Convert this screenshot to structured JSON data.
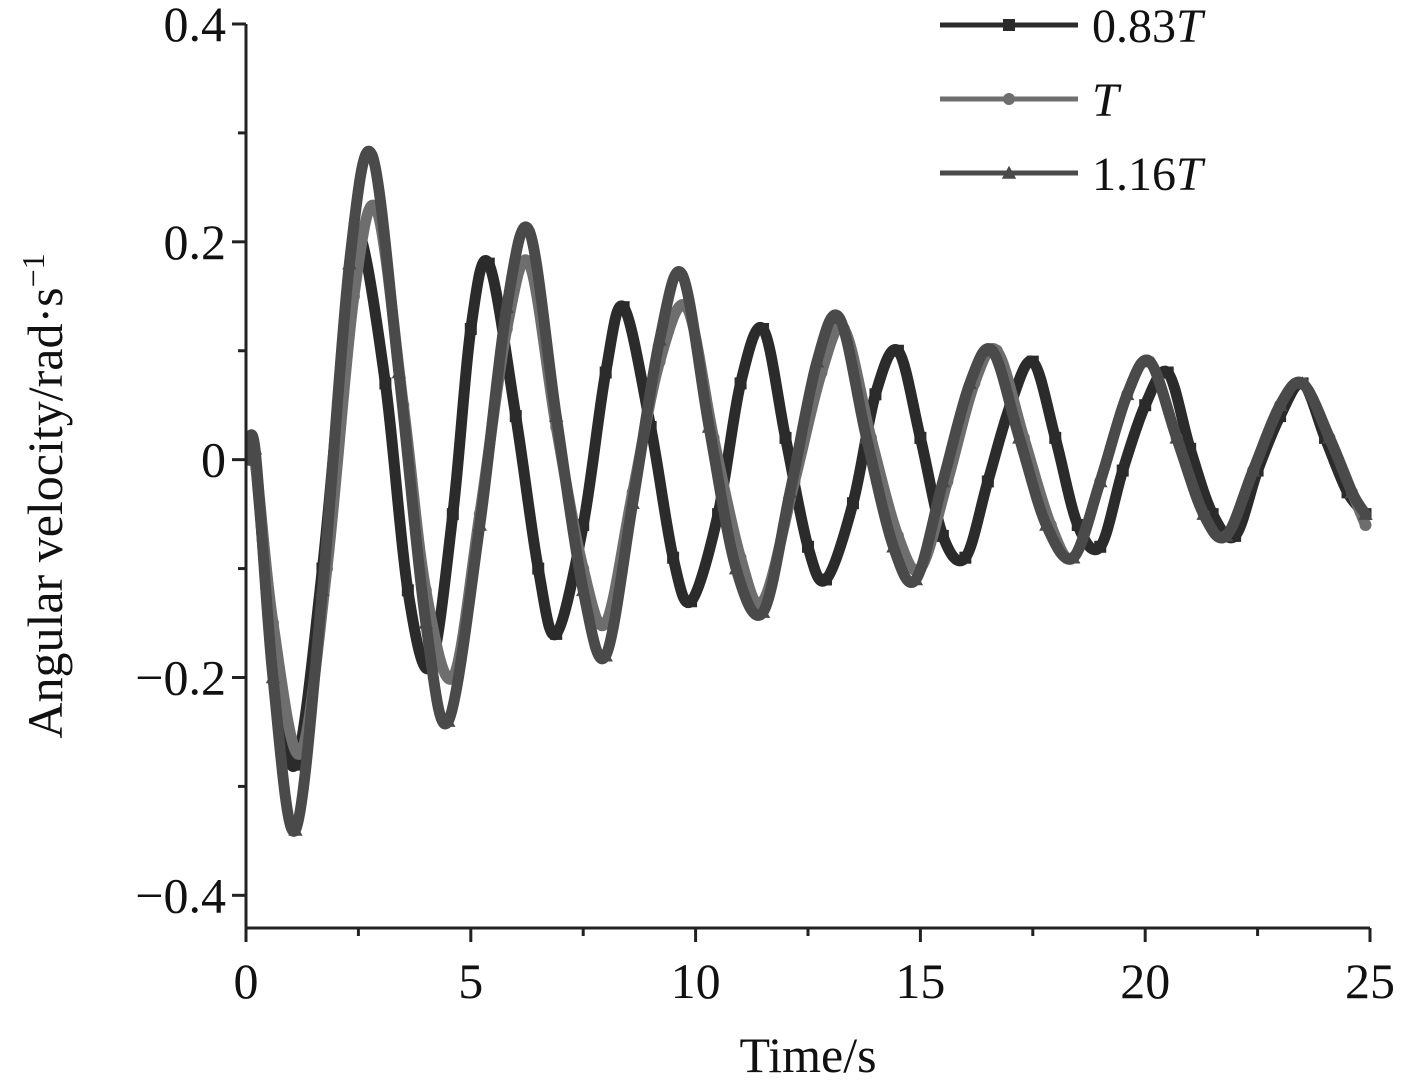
{
  "chart_data": {
    "type": "line",
    "title": "",
    "xlabel": "Time/s",
    "ylabel": "Angular velocity/rad·s",
    "ylabel_superscript": "−1",
    "xlim": [
      0,
      25
    ],
    "ylim": [
      -0.43,
      0.4
    ],
    "x_ticks": [
      0,
      5,
      10,
      15,
      20,
      25
    ],
    "x_tick_labels": [
      "0",
      "5",
      "10",
      "15",
      "20",
      "25"
    ],
    "y_ticks": [
      -0.4,
      -0.2,
      0,
      0.2,
      0.4
    ],
    "y_tick_labels": [
      "−0.4",
      "−0.2",
      "0",
      "0.2",
      "0.4"
    ],
    "grid": false,
    "legend_position": "top-right",
    "series": [
      {
        "name": "0.83T",
        "legend_prefix": "0.83",
        "legend_italic": "T",
        "marker": "square",
        "color": "#2b2b2b",
        "points": [
          [
            0,
            0
          ],
          [
            0.2,
            0
          ],
          [
            0.6,
            -0.18
          ],
          [
            1.1,
            -0.28
          ],
          [
            1.7,
            -0.1
          ],
          [
            2.2,
            0.12
          ],
          [
            2.5,
            0.21
          ],
          [
            3.1,
            0.07
          ],
          [
            3.6,
            -0.12
          ],
          [
            4.1,
            -0.19
          ],
          [
            4.6,
            -0.05
          ],
          [
            5.0,
            0.12
          ],
          [
            5.4,
            0.18
          ],
          [
            6.0,
            0.04
          ],
          [
            6.5,
            -0.1
          ],
          [
            6.9,
            -0.16
          ],
          [
            7.5,
            -0.06
          ],
          [
            8.0,
            0.08
          ],
          [
            8.4,
            0.14
          ],
          [
            9.0,
            0.03
          ],
          [
            9.5,
            -0.09
          ],
          [
            9.9,
            -0.13
          ],
          [
            10.5,
            -0.05
          ],
          [
            11.0,
            0.07
          ],
          [
            11.5,
            0.12
          ],
          [
            12.0,
            0.02
          ],
          [
            12.5,
            -0.08
          ],
          [
            12.9,
            -0.11
          ],
          [
            13.5,
            -0.04
          ],
          [
            14.0,
            0.06
          ],
          [
            14.5,
            0.1
          ],
          [
            15.0,
            0.02
          ],
          [
            15.5,
            -0.07
          ],
          [
            16.0,
            -0.09
          ],
          [
            16.5,
            -0.02
          ],
          [
            17.0,
            0.05
          ],
          [
            17.5,
            0.09
          ],
          [
            18.0,
            0.02
          ],
          [
            18.5,
            -0.06
          ],
          [
            19.0,
            -0.08
          ],
          [
            19.5,
            -0.01
          ],
          [
            20.0,
            0.05
          ],
          [
            20.5,
            0.08
          ],
          [
            21.0,
            0.01
          ],
          [
            21.5,
            -0.05
          ],
          [
            22.0,
            -0.07
          ],
          [
            22.5,
            -0.01
          ],
          [
            23.0,
            0.04
          ],
          [
            23.5,
            0.07
          ],
          [
            24.0,
            0.02
          ],
          [
            24.5,
            -0.03
          ],
          [
            24.9,
            -0.05
          ]
        ]
      },
      {
        "name": "T",
        "legend_prefix": "",
        "legend_italic": "T",
        "marker": "circle",
        "color": "#6e6e6e",
        "points": [
          [
            0,
            0
          ],
          [
            0.2,
            0
          ],
          [
            0.6,
            -0.15
          ],
          [
            1.2,
            -0.27
          ],
          [
            1.8,
            -0.1
          ],
          [
            2.4,
            0.15
          ],
          [
            2.9,
            0.23
          ],
          [
            3.5,
            0.05
          ],
          [
            4.0,
            -0.12
          ],
          [
            4.6,
            -0.2
          ],
          [
            5.2,
            -0.05
          ],
          [
            5.8,
            0.12
          ],
          [
            6.3,
            0.18
          ],
          [
            6.9,
            0.03
          ],
          [
            7.5,
            -0.1
          ],
          [
            8.0,
            -0.15
          ],
          [
            8.6,
            -0.03
          ],
          [
            9.2,
            0.09
          ],
          [
            9.8,
            0.14
          ],
          [
            10.4,
            0.02
          ],
          [
            11.0,
            -0.09
          ],
          [
            11.5,
            -0.13
          ],
          [
            12.2,
            -0.02
          ],
          [
            12.8,
            0.08
          ],
          [
            13.3,
            0.12
          ],
          [
            13.9,
            0.02
          ],
          [
            14.5,
            -0.07
          ],
          [
            15.0,
            -0.1
          ],
          [
            15.6,
            -0.02
          ],
          [
            16.2,
            0.07
          ],
          [
            16.7,
            0.1
          ],
          [
            17.3,
            0.02
          ],
          [
            17.9,
            -0.06
          ],
          [
            18.4,
            -0.09
          ],
          [
            19.0,
            -0.02
          ],
          [
            19.6,
            0.06
          ],
          [
            20.1,
            0.09
          ],
          [
            20.7,
            0.02
          ],
          [
            21.3,
            -0.05
          ],
          [
            21.8,
            -0.07
          ],
          [
            22.4,
            -0.01
          ],
          [
            23.0,
            0.05
          ],
          [
            23.5,
            0.07
          ],
          [
            24.1,
            0.02
          ],
          [
            24.6,
            -0.03
          ],
          [
            24.9,
            -0.06
          ]
        ]
      },
      {
        "name": "1.16T",
        "legend_prefix": "1.16",
        "legend_italic": "T",
        "marker": "triangle",
        "color": "#4a4a4a",
        "points": [
          [
            0,
            0
          ],
          [
            0.2,
            0.01
          ],
          [
            0.6,
            -0.2
          ],
          [
            1.1,
            -0.34
          ],
          [
            1.7,
            -0.12
          ],
          [
            2.3,
            0.18
          ],
          [
            2.8,
            0.28
          ],
          [
            3.4,
            0.08
          ],
          [
            4.0,
            -0.15
          ],
          [
            4.5,
            -0.24
          ],
          [
            5.2,
            -0.06
          ],
          [
            5.8,
            0.14
          ],
          [
            6.3,
            0.21
          ],
          [
            6.9,
            0.04
          ],
          [
            7.5,
            -0.12
          ],
          [
            8.0,
            -0.18
          ],
          [
            8.6,
            -0.04
          ],
          [
            9.2,
            0.11
          ],
          [
            9.7,
            0.17
          ],
          [
            10.3,
            0.03
          ],
          [
            10.9,
            -0.1
          ],
          [
            11.5,
            -0.14
          ],
          [
            12.1,
            -0.03
          ],
          [
            12.7,
            0.09
          ],
          [
            13.2,
            0.13
          ],
          [
            13.8,
            0.02
          ],
          [
            14.4,
            -0.08
          ],
          [
            14.9,
            -0.11
          ],
          [
            15.5,
            -0.02
          ],
          [
            16.1,
            0.07
          ],
          [
            16.6,
            0.1
          ],
          [
            17.2,
            0.02
          ],
          [
            17.8,
            -0.06
          ],
          [
            18.4,
            -0.09
          ],
          [
            19.0,
            -0.02
          ],
          [
            19.6,
            0.06
          ],
          [
            20.1,
            0.09
          ],
          [
            20.7,
            0.02
          ],
          [
            21.3,
            -0.05
          ],
          [
            21.8,
            -0.07
          ],
          [
            22.4,
            -0.01
          ],
          [
            23.0,
            0.05
          ],
          [
            23.5,
            0.07
          ],
          [
            24.1,
            0.02
          ],
          [
            24.6,
            -0.03
          ],
          [
            24.9,
            -0.05
          ]
        ]
      }
    ]
  }
}
